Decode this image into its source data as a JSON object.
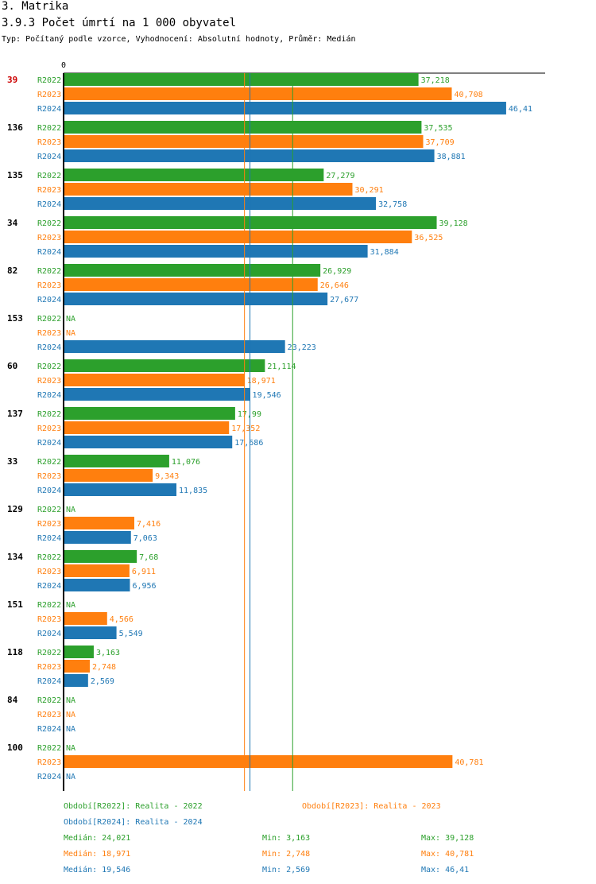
{
  "header": {
    "section": "3. Matrika",
    "title": "3.9.3 Počet úmrtí na 1 000 obyvatel",
    "subtitle": "Typ: Počítaný podle vzorce, Vyhodnocení: Absolutní hodnoty, Průměr: Medián"
  },
  "colors": {
    "R2022": "#2ca02c",
    "R2023": "#ff7f0e",
    "R2024": "#1f77b4",
    "highlight": "#cc0000"
  },
  "chart_data": {
    "type": "bar",
    "orientation": "horizontal",
    "x_axis_label": "0",
    "xlim": [
      0,
      50.5
    ],
    "series_names": [
      "R2022",
      "R2023",
      "R2024"
    ],
    "categories": [
      {
        "label": "39",
        "highlight": true,
        "values": [
          37.218,
          40.708,
          46.41
        ],
        "labels": [
          "37,218",
          "40,708",
          "46,41"
        ]
      },
      {
        "label": "136",
        "values": [
          37.535,
          37.709,
          38.881
        ],
        "labels": [
          "37,535",
          "37,709",
          "38,881"
        ]
      },
      {
        "label": "135",
        "values": [
          27.279,
          30.291,
          32.758
        ],
        "labels": [
          "27,279",
          "30,291",
          "32,758"
        ]
      },
      {
        "label": "34",
        "values": [
          39.128,
          36.525,
          31.884
        ],
        "labels": [
          "39,128",
          "36,525",
          "31,884"
        ]
      },
      {
        "label": "82",
        "values": [
          26.929,
          26.646,
          27.677
        ],
        "labels": [
          "26,929",
          "26,646",
          "27,677"
        ]
      },
      {
        "label": "153",
        "values": [
          null,
          null,
          23.223
        ],
        "labels": [
          "NA",
          "NA",
          "23,223"
        ]
      },
      {
        "label": "60",
        "values": [
          21.114,
          18.971,
          19.546
        ],
        "labels": [
          "21,114",
          "18,971",
          "19,546"
        ]
      },
      {
        "label": "137",
        "values": [
          17.99,
          17.352,
          17.686
        ],
        "labels": [
          "17,99",
          "17,352",
          "17,686"
        ]
      },
      {
        "label": "33",
        "values": [
          11.076,
          9.343,
          11.835
        ],
        "labels": [
          "11,076",
          "9,343",
          "11,835"
        ]
      },
      {
        "label": "129",
        "values": [
          null,
          7.416,
          7.063
        ],
        "labels": [
          "NA",
          "7,416",
          "7,063"
        ]
      },
      {
        "label": "134",
        "values": [
          7.68,
          6.911,
          6.956
        ],
        "labels": [
          "7,68",
          "6,911",
          "6,956"
        ]
      },
      {
        "label": "151",
        "values": [
          null,
          4.566,
          5.549
        ],
        "labels": [
          "NA",
          "4,566",
          "5,549"
        ]
      },
      {
        "label": "118",
        "values": [
          3.163,
          2.748,
          2.569
        ],
        "labels": [
          "3,163",
          "2,748",
          "2,569"
        ]
      },
      {
        "label": "84",
        "values": [
          null,
          null,
          null
        ],
        "labels": [
          "NA",
          "NA",
          "NA"
        ]
      },
      {
        "label": "100",
        "values": [
          null,
          40.781,
          null
        ],
        "labels": [
          "NA",
          "40,781",
          "NA"
        ]
      }
    ],
    "median_lines": [
      {
        "series": "R2022",
        "value": 24.021
      },
      {
        "series": "R2023",
        "value": 18.971
      },
      {
        "series": "R2024",
        "value": 19.546
      }
    ]
  },
  "legend": {
    "periods": [
      {
        "series": "R2022",
        "text": "Období[R2022]: Realita - 2022"
      },
      {
        "series": "R2023",
        "text": "Období[R2023]: Realita - 2023"
      },
      {
        "series": "R2024",
        "text": "Období[R2024]: Realita - 2024"
      }
    ],
    "stats": [
      {
        "series": "R2022",
        "median": "Medián: 24,021",
        "min": "Min: 3,163",
        "max": "Max: 39,128"
      },
      {
        "series": "R2023",
        "median": "Medián: 18,971",
        "min": "Min: 2,748",
        "max": "Max: 40,781"
      },
      {
        "series": "R2024",
        "median": "Medián: 19,546",
        "min": "Min: 2,569",
        "max": "Max: 46,41"
      }
    ]
  }
}
